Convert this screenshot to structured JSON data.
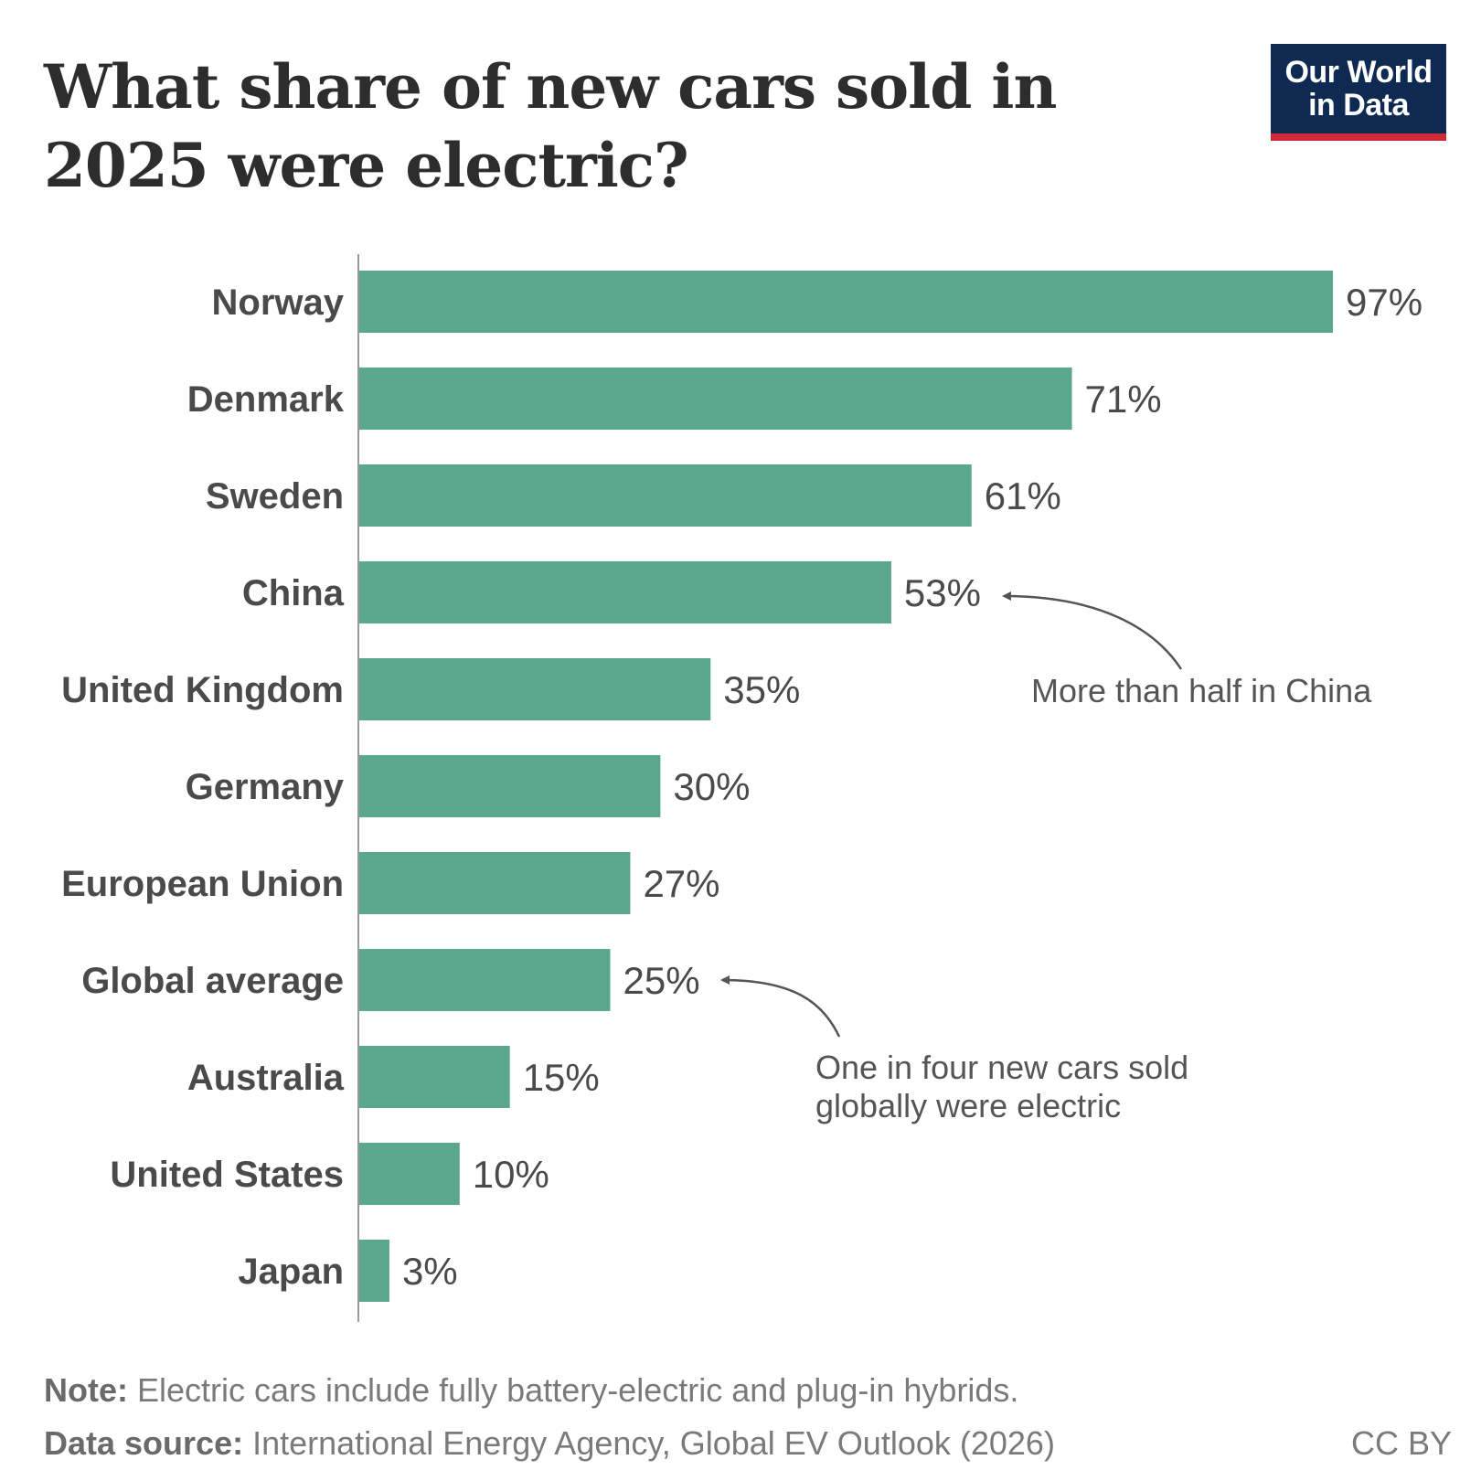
{
  "header": {
    "title": "What share of new cars sold in 2025 were electric?",
    "logo_line1": "Our World",
    "logo_line2": "in Data"
  },
  "chart_data": {
    "type": "bar",
    "orientation": "horizontal",
    "title": "What share of new cars sold in 2025 were electric?",
    "categories": [
      "Norway",
      "Denmark",
      "Sweden",
      "China",
      "United Kingdom",
      "Germany",
      "European Union",
      "Global average",
      "Australia",
      "United States",
      "Japan"
    ],
    "values": [
      97,
      71,
      61,
      53,
      35,
      30,
      27,
      25,
      15,
      10,
      3
    ],
    "value_labels": [
      "97%",
      "71%",
      "61%",
      "53%",
      "35%",
      "30%",
      "27%",
      "25%",
      "15%",
      "10%",
      "3%"
    ],
    "unit": "%",
    "xlim": [
      0,
      100
    ],
    "xlabel": "",
    "ylabel": "",
    "grid": false,
    "bar_color": "#5aa78e",
    "annotations": [
      {
        "target": "China",
        "lines": [
          "More than half in China"
        ]
      },
      {
        "target": "Global average",
        "lines": [
          "One in four new cars sold",
          "globally were electric"
        ]
      }
    ]
  },
  "footer": {
    "note_label": "Note:",
    "note_text": " Electric cars include fully battery-electric and plug-in hybrids.",
    "source_label": "Data source:",
    "source_text": " International Energy Agency, Global EV Outlook (2026)",
    "license": "CC BY"
  }
}
